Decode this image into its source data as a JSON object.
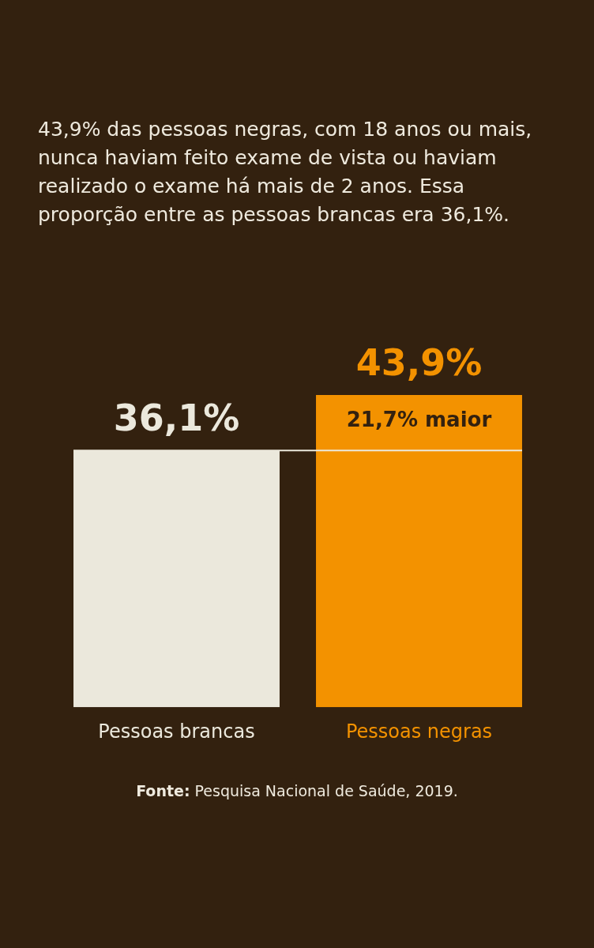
{
  "chart_data": {
    "type": "bar",
    "title": "43,9% das pessoas negras, com 18 anos ou mais, nunca haviam feito exame de vista ou haviam realizado o exame há mais de 2 anos. Essa proporção entre as pessoas brancas era 36,1%.",
    "categories": [
      "Pessoas brancas",
      "Pessoas negras"
    ],
    "values": [
      36.1,
      43.9
    ],
    "colors": [
      "#ebe8dc",
      "#f39200"
    ],
    "data_labels": true,
    "value_labels": [
      "36,1%",
      "43,9%"
    ],
    "ref_lines": [
      {
        "axis": "y",
        "value": 36.1,
        "color": "#ebe8dc"
      }
    ],
    "annotations": [
      "21,7% maior",
      "Fonte: Pesquisa Nacional de Saúde, 2019."
    ],
    "legend": false,
    "grid": false
  }
}
